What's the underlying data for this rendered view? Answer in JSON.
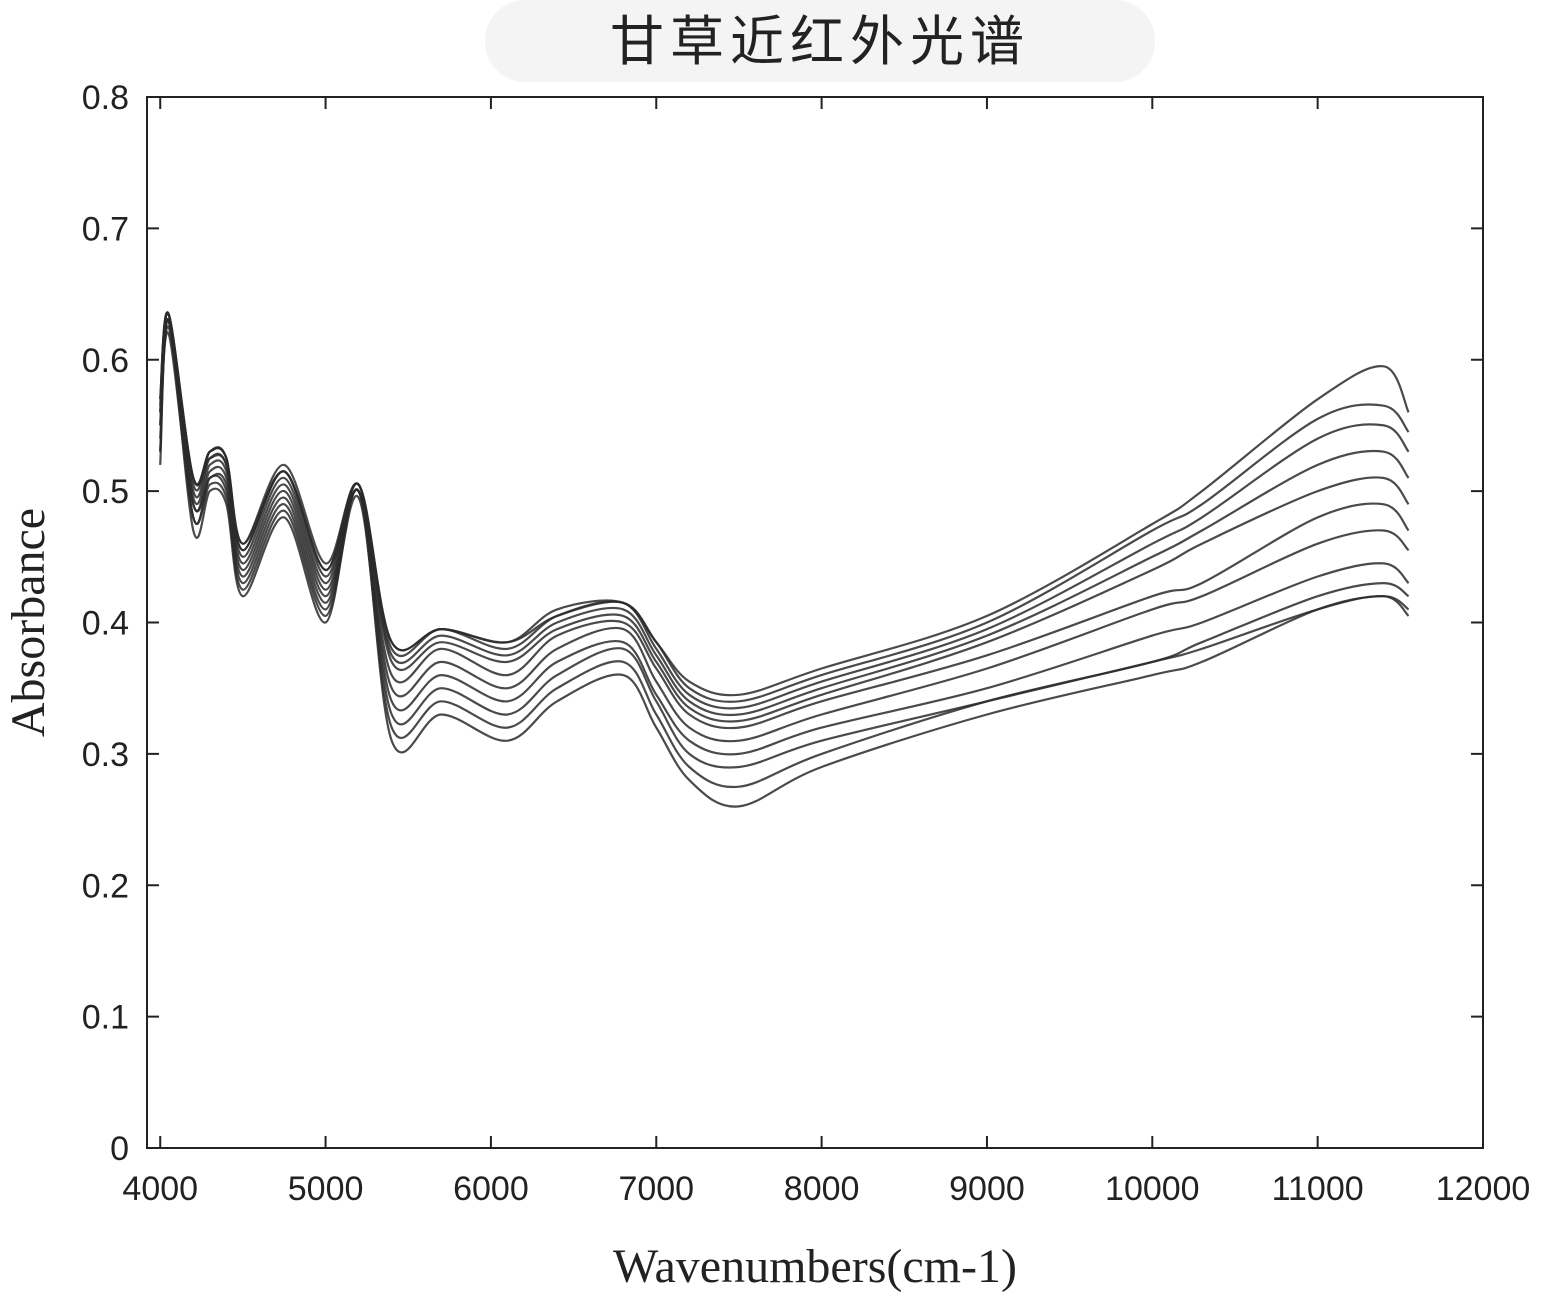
{
  "chart_data": {
    "type": "line",
    "title": "甘草近红外光谱",
    "xlabel": "Wavenumbers(cm-1)",
    "ylabel": "Absorbance",
    "xlim": [
      3920,
      12000
    ],
    "ylim": [
      0,
      0.8
    ],
    "x_ticks": [
      "4000",
      "5000",
      "6000",
      "7000",
      "8000",
      "9000",
      "10000",
      "11000",
      "12000"
    ],
    "y_ticks": [
      "0",
      "0.1",
      "0.2",
      "0.3",
      "0.4",
      "0.5",
      "0.6",
      "0.7",
      "0.8"
    ],
    "grid": false,
    "line_color": "#2a2a2a",
    "series": [
      {
        "x": [
          4000,
          4050,
          4200,
          4300,
          4400,
          4500,
          4750,
          5000,
          5200,
          5400,
          5700,
          6100,
          6400,
          6800,
          7000,
          7200,
          7500,
          8000,
          9000,
          10000,
          10300,
          11000,
          11400,
          11550
        ],
        "y": [
          0.52,
          0.63,
          0.48,
          0.51,
          0.5,
          0.43,
          0.49,
          0.41,
          0.5,
          0.33,
          0.35,
          0.33,
          0.36,
          0.38,
          0.34,
          0.3,
          0.29,
          0.31,
          0.34,
          0.37,
          0.38,
          0.41,
          0.42,
          0.405
        ]
      },
      {
        "x": [
          4000,
          4050,
          4200,
          4300,
          4400,
          4500,
          4750,
          5000,
          5200,
          5400,
          5700,
          6100,
          6400,
          6800,
          7000,
          7200,
          7500,
          8000,
          9000,
          10000,
          10300,
          11000,
          11400,
          11550
        ],
        "y": [
          0.53,
          0.63,
          0.47,
          0.5,
          0.49,
          0.42,
          0.48,
          0.4,
          0.5,
          0.31,
          0.33,
          0.31,
          0.34,
          0.36,
          0.32,
          0.28,
          0.26,
          0.29,
          0.33,
          0.36,
          0.37,
          0.41,
          0.42,
          0.41
        ]
      },
      {
        "x": [
          4000,
          4050,
          4200,
          4300,
          4400,
          4500,
          4750,
          5000,
          5200,
          5400,
          5700,
          6100,
          6400,
          6800,
          7000,
          7200,
          7500,
          8000,
          9000,
          10000,
          10300,
          11000,
          11400,
          11550
        ],
        "y": [
          0.54,
          0.62,
          0.48,
          0.505,
          0.495,
          0.425,
          0.485,
          0.405,
          0.495,
          0.32,
          0.34,
          0.32,
          0.35,
          0.37,
          0.33,
          0.29,
          0.275,
          0.3,
          0.34,
          0.37,
          0.385,
          0.42,
          0.43,
          0.42
        ]
      },
      {
        "x": [
          4000,
          4050,
          4200,
          4300,
          4400,
          4500,
          4750,
          5000,
          5200,
          5400,
          5700,
          6100,
          6400,
          6800,
          7000,
          7200,
          7500,
          8000,
          9000,
          10000,
          10300,
          11000,
          11400,
          11550
        ],
        "y": [
          0.53,
          0.625,
          0.49,
          0.51,
          0.505,
          0.435,
          0.495,
          0.415,
          0.5,
          0.34,
          0.36,
          0.34,
          0.37,
          0.385,
          0.345,
          0.31,
          0.3,
          0.32,
          0.35,
          0.39,
          0.4,
          0.435,
          0.445,
          0.43
        ]
      },
      {
        "x": [
          4000,
          4050,
          4200,
          4300,
          4400,
          4500,
          4750,
          5000,
          5200,
          5400,
          5700,
          6100,
          6400,
          6800,
          7000,
          7200,
          7500,
          8000,
          9000,
          10000,
          10300,
          11000,
          11400,
          11550
        ],
        "y": [
          0.55,
          0.63,
          0.49,
          0.515,
          0.51,
          0.44,
          0.5,
          0.42,
          0.5,
          0.35,
          0.37,
          0.35,
          0.38,
          0.395,
          0.355,
          0.32,
          0.31,
          0.33,
          0.365,
          0.41,
          0.42,
          0.46,
          0.47,
          0.455
        ]
      },
      {
        "x": [
          4000,
          4050,
          4200,
          4300,
          4400,
          4500,
          4750,
          5000,
          5200,
          5400,
          5700,
          6100,
          6400,
          6800,
          7000,
          7200,
          7500,
          8000,
          9000,
          10000,
          10300,
          11000,
          11400,
          11550
        ],
        "y": [
          0.55,
          0.63,
          0.495,
          0.52,
          0.515,
          0.445,
          0.505,
          0.425,
          0.5,
          0.36,
          0.38,
          0.36,
          0.39,
          0.4,
          0.365,
          0.33,
          0.32,
          0.34,
          0.375,
          0.42,
          0.43,
          0.48,
          0.49,
          0.47
        ]
      },
      {
        "x": [
          4000,
          4050,
          4200,
          4300,
          4400,
          4500,
          4750,
          5000,
          5200,
          5400,
          5700,
          6100,
          6400,
          6800,
          7000,
          7200,
          7500,
          8000,
          9000,
          10000,
          10300,
          11000,
          11400,
          11550
        ],
        "y": [
          0.56,
          0.635,
          0.5,
          0.525,
          0.52,
          0.45,
          0.51,
          0.43,
          0.505,
          0.37,
          0.385,
          0.37,
          0.395,
          0.405,
          0.37,
          0.335,
          0.325,
          0.345,
          0.385,
          0.44,
          0.46,
          0.5,
          0.51,
          0.49
        ]
      },
      {
        "x": [
          4000,
          4050,
          4200,
          4300,
          4400,
          4500,
          4750,
          5000,
          5200,
          5400,
          5700,
          6100,
          6400,
          6800,
          7000,
          7200,
          7500,
          8000,
          9000,
          10000,
          10300,
          11000,
          11400,
          11550
        ],
        "y": [
          0.565,
          0.635,
          0.505,
          0.53,
          0.525,
          0.455,
          0.515,
          0.435,
          0.505,
          0.375,
          0.39,
          0.375,
          0.4,
          0.41,
          0.375,
          0.34,
          0.33,
          0.35,
          0.39,
          0.45,
          0.47,
          0.52,
          0.53,
          0.51
        ]
      },
      {
        "x": [
          4000,
          4050,
          4200,
          4300,
          4400,
          4500,
          4750,
          5000,
          5200,
          5400,
          5700,
          6100,
          6400,
          6800,
          7000,
          7200,
          7500,
          8000,
          9000,
          10000,
          10300,
          11000,
          11400,
          11550
        ],
        "y": [
          0.57,
          0.635,
          0.51,
          0.53,
          0.525,
          0.46,
          0.515,
          0.44,
          0.505,
          0.38,
          0.395,
          0.38,
          0.405,
          0.415,
          0.38,
          0.345,
          0.335,
          0.355,
          0.395,
          0.46,
          0.48,
          0.54,
          0.55,
          0.53
        ]
      },
      {
        "x": [
          4000,
          4050,
          4200,
          4300,
          4400,
          4500,
          4750,
          5000,
          5200,
          5400,
          5700,
          6100,
          6400,
          6800,
          7000,
          7200,
          7500,
          8000,
          9000,
          10000,
          10300,
          11000,
          11400,
          11550
        ],
        "y": [
          0.57,
          0.635,
          0.51,
          0.53,
          0.525,
          0.46,
          0.52,
          0.445,
          0.505,
          0.385,
          0.395,
          0.385,
          0.405,
          0.415,
          0.385,
          0.35,
          0.34,
          0.36,
          0.4,
          0.47,
          0.49,
          0.555,
          0.565,
          0.545
        ]
      },
      {
        "x": [
          4000,
          4050,
          4200,
          4300,
          4400,
          4500,
          4750,
          5000,
          5200,
          5400,
          5700,
          6100,
          6400,
          6800,
          7000,
          7200,
          7500,
          8000,
          9000,
          10000,
          10300,
          11000,
          11400,
          11550
        ],
        "y": [
          0.56,
          0.635,
          0.51,
          0.525,
          0.52,
          0.455,
          0.515,
          0.44,
          0.505,
          0.385,
          0.395,
          0.385,
          0.41,
          0.415,
          0.385,
          0.355,
          0.345,
          0.365,
          0.405,
          0.475,
          0.5,
          0.57,
          0.595,
          0.56
        ]
      }
    ]
  }
}
